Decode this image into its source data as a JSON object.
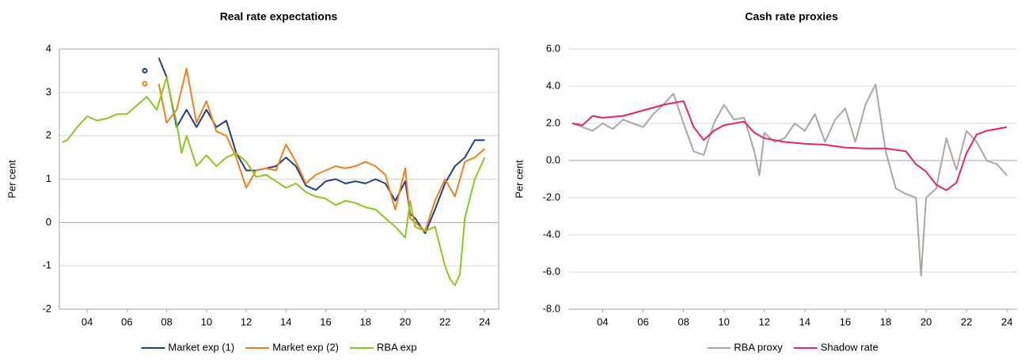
{
  "chart_data": [
    {
      "type": "line",
      "title": "Real rate expectations",
      "y_label": "Per cent",
      "xlim": [
        2002.6,
        2024.7
      ],
      "ylim": [
        -2,
        4
      ],
      "xticks": [
        {
          "value": 2004,
          "label": "04"
        },
        {
          "value": 2006,
          "label": "06"
        },
        {
          "value": 2008,
          "label": "08"
        },
        {
          "value": 2010,
          "label": "10"
        },
        {
          "value": 2012,
          "label": "12"
        },
        {
          "value": 2014,
          "label": "14"
        },
        {
          "value": 2016,
          "label": "16"
        },
        {
          "value": 2018,
          "label": "18"
        },
        {
          "value": 2020,
          "label": "20"
        },
        {
          "value": 2022,
          "label": "22"
        },
        {
          "value": 2024,
          "label": "24"
        }
      ],
      "yticks": [
        -2,
        -1,
        0,
        1,
        2,
        3,
        4
      ],
      "grid": true,
      "frame": true,
      "legend": "bottom",
      "series": [
        {
          "name": "Market exp (1)",
          "color": "#1f3d87",
          "x": [
            2006.9,
            2007.2,
            2007.6,
            2008,
            2008.5,
            2009,
            2009.5,
            2010,
            2010.5,
            2011,
            2011.5,
            2012,
            2012.5,
            2013,
            2013.5,
            2014,
            2014.5,
            2015,
            2015.5,
            2016,
            2016.5,
            2017,
            2017.5,
            2018,
            2018.5,
            2019,
            2019.5,
            2020,
            2020.25,
            2020.5,
            2021,
            2021.5,
            2022,
            2022.5,
            2023,
            2023.5,
            2024
          ],
          "values": [
            3.5,
            null,
            3.8,
            3.35,
            2.2,
            2.6,
            2.2,
            2.6,
            2.2,
            2.35,
            1.6,
            1.2,
            1.2,
            1.25,
            1.3,
            1.5,
            1.3,
            0.85,
            0.75,
            0.95,
            1.0,
            0.9,
            0.95,
            0.9,
            1.0,
            0.9,
            0.5,
            0.95,
            0.2,
            0.1,
            -0.25,
            0.3,
            0.9,
            1.3,
            1.5,
            1.9,
            1.9
          ]
        },
        {
          "name": "Market exp (2)",
          "color": "#f07f1a",
          "x": [
            2006.9,
            2007.2,
            2007.6,
            2008,
            2008.5,
            2009,
            2009.5,
            2010,
            2010.5,
            2011,
            2011.5,
            2012,
            2012.5,
            2013,
            2013.5,
            2014,
            2014.5,
            2015,
            2015.5,
            2016,
            2016.5,
            2017,
            2017.5,
            2018,
            2018.5,
            2019,
            2019.5,
            2020,
            2020.25,
            2020.5,
            2021,
            2021.5,
            2022,
            2022.5,
            2023,
            2023.5,
            2024
          ],
          "values": [
            3.2,
            null,
            3.2,
            2.3,
            2.6,
            3.55,
            2.3,
            2.8,
            2.1,
            2.0,
            1.5,
            0.8,
            1.2,
            1.25,
            1.2,
            1.8,
            1.4,
            0.9,
            1.1,
            1.2,
            1.3,
            1.25,
            1.3,
            1.4,
            1.3,
            1.1,
            0.3,
            1.25,
            0.1,
            0.0,
            -0.2,
            0.5,
            1.0,
            0.6,
            1.4,
            1.5,
            1.7
          ]
        },
        {
          "name": "RBA exp",
          "color": "#8cc61e",
          "x": [
            2002.75,
            2003,
            2003.5,
            2004,
            2004.5,
            2005,
            2005.5,
            2006,
            2006.5,
            2007,
            2007.5,
            2008,
            2008.25,
            2008.5,
            2008.75,
            2009,
            2009.5,
            2010,
            2010.5,
            2011,
            2011.5,
            2012,
            2012.5,
            2013,
            2013.5,
            2014,
            2014.5,
            2015,
            2015.5,
            2016,
            2016.5,
            2017,
            2017.5,
            2018,
            2018.5,
            2019,
            2019.5,
            2020,
            2020.25,
            2020.5,
            2021,
            2021.5,
            2022,
            2022.25,
            2022.5,
            2022.75,
            2023,
            2023.5,
            2024
          ],
          "values": [
            1.85,
            1.9,
            2.2,
            2.45,
            2.35,
            2.4,
            2.5,
            2.5,
            2.7,
            2.9,
            2.6,
            3.35,
            2.8,
            2.3,
            1.6,
            2.0,
            1.3,
            1.55,
            1.3,
            1.5,
            1.6,
            1.4,
            1.05,
            1.1,
            0.95,
            0.8,
            0.9,
            0.7,
            0.6,
            0.55,
            0.4,
            0.5,
            0.45,
            0.35,
            0.3,
            0.1,
            -0.1,
            -0.35,
            0.5,
            -0.1,
            -0.2,
            -0.1,
            -1.0,
            -1.3,
            -1.45,
            -1.2,
            0.1,
            1.0,
            1.5
          ]
        }
      ]
    },
    {
      "type": "line",
      "title": "Cash rate proxies",
      "y_label": "Per cent",
      "xlim": [
        2002.3,
        2024.5
      ],
      "ylim": [
        -8,
        6
      ],
      "xticks": [
        {
          "value": 2004,
          "label": "04"
        },
        {
          "value": 2006,
          "label": "06"
        },
        {
          "value": 2008,
          "label": "08"
        },
        {
          "value": 2010,
          "label": "10"
        },
        {
          "value": 2012,
          "label": "12"
        },
        {
          "value": 2014,
          "label": "14"
        },
        {
          "value": 2016,
          "label": "16"
        },
        {
          "value": 2018,
          "label": "18"
        },
        {
          "value": 2020,
          "label": "20"
        },
        {
          "value": 2022,
          "label": "22"
        },
        {
          "value": 2024,
          "label": "24"
        }
      ],
      "yticks": [
        {
          "value": -8,
          "label": "-8.0"
        },
        {
          "value": -6,
          "label": "-6.0"
        },
        {
          "value": -4,
          "label": "-4.0"
        },
        {
          "value": -2,
          "label": "-2.0"
        },
        {
          "value": 0,
          "label": "0.0"
        },
        {
          "value": 2,
          "label": "2.0"
        },
        {
          "value": 4,
          "label": "4.0"
        },
        {
          "value": 6,
          "label": "6.0"
        }
      ],
      "grid": true,
      "frame": false,
      "legend": "bottom",
      "series": [
        {
          "name": "RBA proxy",
          "color": "#aea59d",
          "x": [
            2002.5,
            2003,
            2003.5,
            2004,
            2004.5,
            2005,
            2005.5,
            2006,
            2006.5,
            2007,
            2007.5,
            2008,
            2008.5,
            2009,
            2009.5,
            2010,
            2010.5,
            2011,
            2011.5,
            2011.75,
            2012,
            2012.5,
            2013,
            2013.5,
            2014,
            2014.5,
            2015,
            2015.5,
            2016,
            2016.5,
            2017,
            2017.5,
            2018,
            2018.5,
            2019,
            2019.5,
            2019.75,
            2020,
            2020.5,
            2021,
            2021.5,
            2022,
            2022.5,
            2023,
            2023.5,
            2024
          ],
          "values": [
            2.0,
            1.8,
            1.6,
            2.0,
            1.7,
            2.2,
            2.0,
            1.8,
            2.5,
            3.0,
            3.6,
            2.0,
            0.5,
            0.3,
            2.0,
            3.0,
            2.2,
            2.3,
            0.5,
            -0.8,
            1.5,
            1.0,
            1.2,
            2.0,
            1.6,
            2.5,
            1.0,
            2.2,
            2.8,
            1.0,
            3.0,
            4.1,
            0.5,
            -1.5,
            -1.8,
            -2.0,
            -6.2,
            -2.0,
            -1.5,
            1.2,
            -0.5,
            1.6,
            1.0,
            0.0,
            -0.2,
            -0.8
          ]
        },
        {
          "name": "Shadow rate",
          "color": "#e8245f",
          "x": [
            2002.5,
            2003,
            2003.5,
            2004,
            2005,
            2006,
            2007,
            2008,
            2008.5,
            2009,
            2009.5,
            2010,
            2011,
            2011.5,
            2012,
            2013,
            2014,
            2015,
            2016,
            2017,
            2018,
            2019,
            2019.5,
            2020,
            2020.5,
            2021,
            2021.5,
            2022,
            2022.5,
            2023,
            2023.5,
            2024
          ],
          "values": [
            2.0,
            1.9,
            2.4,
            2.3,
            2.4,
            2.7,
            3.0,
            3.2,
            1.8,
            1.1,
            1.6,
            1.9,
            2.1,
            1.5,
            1.2,
            1.0,
            0.9,
            0.85,
            0.7,
            0.65,
            0.65,
            0.5,
            -0.2,
            -0.6,
            -1.3,
            -1.6,
            -1.2,
            0.4,
            1.4,
            1.6,
            1.7,
            1.8
          ]
        }
      ]
    }
  ]
}
